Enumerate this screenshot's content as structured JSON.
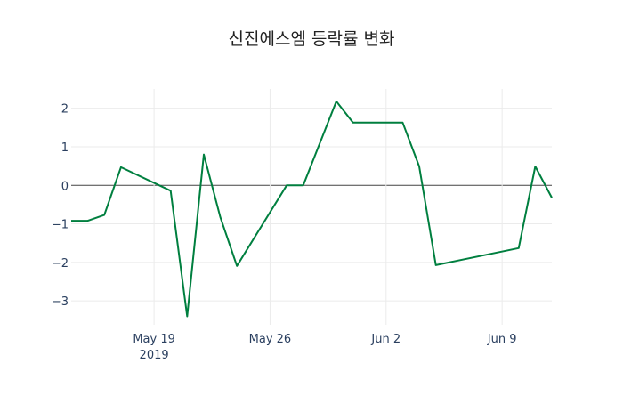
{
  "chart_data": {
    "type": "line",
    "title": "신진에스엠 등락률 변화",
    "xlabel": "",
    "ylabel": "",
    "x": [
      "2019-05-14",
      "2019-05-15",
      "2019-05-16",
      "2019-05-17",
      "2019-05-20",
      "2019-05-21",
      "2019-05-22",
      "2019-05-23",
      "2019-05-24",
      "2019-05-27",
      "2019-05-28",
      "2019-05-30",
      "2019-05-31",
      "2019-06-03",
      "2019-06-04",
      "2019-06-05",
      "2019-06-10",
      "2019-06-11",
      "2019-06-12"
    ],
    "series": [
      {
        "name": "등락률",
        "color": "#007f3f",
        "values": [
          -0.92,
          -0.92,
          -0.77,
          0.47,
          -0.14,
          -3.4,
          0.8,
          -0.83,
          -2.09,
          0,
          0,
          2.18,
          1.63,
          1.63,
          0.49,
          -2.07,
          -1.63,
          0.49,
          -0.32
        ]
      }
    ],
    "xlim": [
      "2019-05-14",
      "2019-06-12"
    ],
    "ylim": [
      -3.62,
      2.5
    ],
    "yticks": [
      -3,
      -2,
      -1,
      0,
      1,
      2
    ],
    "ytick_labels": [
      "−3",
      "−2",
      "−1",
      "0",
      "1",
      "2"
    ],
    "xticks": [
      "2019-05-19",
      "2019-05-26",
      "2019-06-02",
      "2019-06-09"
    ],
    "xtick_labels": [
      "May 19",
      "May 26",
      "Jun 2",
      "Jun 9"
    ],
    "xtick_year": "2019",
    "grid": true,
    "legend": "none"
  }
}
